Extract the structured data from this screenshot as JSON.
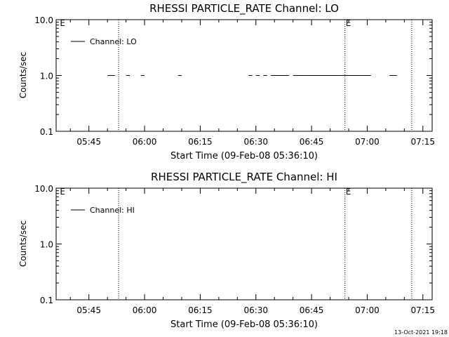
{
  "footer": {
    "timestamp": "13-Oct-2021 19:18"
  },
  "chart_data": [
    {
      "type": "line",
      "title": "RHESSI PARTICLE_RATE Channel: LO",
      "xlabel": "Start Time (09-Feb-08 05:36:10)",
      "ylabel": "Counts/sec",
      "y_scale": "log",
      "ylim": [
        0.1,
        10.0
      ],
      "y_ticks": [
        {
          "value": 0.1,
          "label": "0.1"
        },
        {
          "value": 1.0,
          "label": "1.0"
        },
        {
          "value": 10.0,
          "label": "10.0"
        }
      ],
      "xlim": [
        "05:36:10",
        "07:17:30"
      ],
      "x_ticks": [
        "05:45",
        "06:00",
        "06:15",
        "06:30",
        "06:45",
        "07:00",
        "07:15"
      ],
      "legend": {
        "placement": "top-left",
        "entries": [
          "Channel: LO"
        ]
      },
      "markers": [
        {
          "time": "05:37",
          "label": "E"
        },
        {
          "time": "06:54",
          "label": "E"
        }
      ],
      "vlines": [
        "05:53",
        "06:54",
        "07:12"
      ],
      "series": [
        {
          "name": "Channel: LO",
          "segments": [
            {
              "start": "05:50",
              "end": "05:51",
              "value": 1.0
            },
            {
              "start": "05:51",
              "end": "05:52",
              "value": 1.0
            },
            {
              "start": "05:55",
              "end": "05:56",
              "value": 1.0
            },
            {
              "start": "05:59",
              "end": "06:00",
              "value": 1.0
            },
            {
              "start": "06:09",
              "end": "06:10",
              "value": 1.0
            },
            {
              "start": "06:28",
              "end": "06:29",
              "value": 1.0
            },
            {
              "start": "06:30",
              "end": "06:31",
              "value": 1.0
            },
            {
              "start": "06:32",
              "end": "06:33",
              "value": 1.0
            },
            {
              "start": "06:34",
              "end": "06:39",
              "value": 1.0
            },
            {
              "start": "06:40",
              "end": "06:44",
              "value": 1.0
            },
            {
              "start": "06:44",
              "end": "06:53",
              "value": 1.0
            },
            {
              "start": "06:53",
              "end": "06:58",
              "value": 1.0
            },
            {
              "start": "06:58",
              "end": "07:01",
              "value": 1.0
            },
            {
              "start": "07:06",
              "end": "07:07",
              "value": 1.0
            },
            {
              "start": "07:07",
              "end": "07:08",
              "value": 1.0
            }
          ]
        }
      ]
    },
    {
      "type": "line",
      "title": "RHESSI PARTICLE_RATE Channel: HI",
      "xlabel": "Start Time (09-Feb-08 05:36:10)",
      "ylabel": "Counts/sec",
      "y_scale": "log",
      "ylim": [
        0.1,
        10.0
      ],
      "y_ticks": [
        {
          "value": 0.1,
          "label": "0.1"
        },
        {
          "value": 1.0,
          "label": "1.0"
        },
        {
          "value": 10.0,
          "label": "10.0"
        }
      ],
      "xlim": [
        "05:36:10",
        "07:17:30"
      ],
      "x_ticks": [
        "05:45",
        "06:00",
        "06:15",
        "06:30",
        "06:45",
        "07:00",
        "07:15"
      ],
      "legend": {
        "placement": "top-left",
        "entries": [
          "Channel: HI"
        ]
      },
      "markers": [
        {
          "time": "05:37",
          "label": "E"
        },
        {
          "time": "06:54",
          "label": "E"
        }
      ],
      "vlines": [
        "05:53",
        "06:54",
        "07:12"
      ],
      "series": [
        {
          "name": "Channel: HI",
          "segments": []
        }
      ]
    }
  ]
}
